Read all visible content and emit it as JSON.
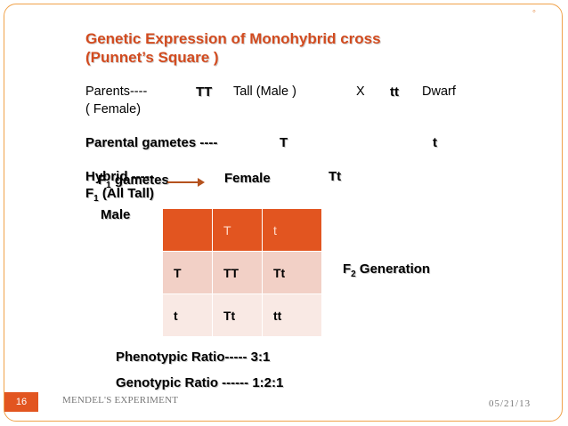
{
  "title": {
    "line1": "Genetic  Expression  of  Monohybrid  cross",
    "line2": "(Punnet’s Square )"
  },
  "parents": {
    "label": "Parents----",
    "male_genotype": "TT",
    "male_desc": "Tall  (Male  )",
    "cross_symbol": "X",
    "female_genotype": "tt",
    "female_desc": "Dwarf",
    "female_note": "( Female)"
  },
  "parental_gametes": {
    "label": "Parental gametes  ----",
    "gamete1": "T",
    "gamete2": "t"
  },
  "hybrid": {
    "overlap_text": "Hybrid -----",
    "f1_prefix": "F",
    "f1_sub": "1",
    "f1_suffix": " (All Tall)",
    "f1_gametes_prefix": "F",
    "f1_gametes_sub": "1",
    "f1_gametes_suffix": " gametes",
    "female_label": "Female",
    "hybrid_genotype": "Tt",
    "male_label": "Male"
  },
  "punnet": {
    "rows": [
      [
        "",
        "T",
        "t"
      ],
      [
        "T",
        "TT",
        "Tt"
      ],
      [
        "t",
        "Tt",
        "tt"
      ]
    ]
  },
  "f2": {
    "prefix": "F",
    "sub": "2",
    "suffix": " Generation"
  },
  "ratios": {
    "phenotypic": "Phenotypic Ratio-----  3:1",
    "genotypic": "Genotypic    Ratio ------  1:2:1"
  },
  "footer": {
    "page_number": "16",
    "left_text": "MENDEL'S EXPERIMENT",
    "date": "05/21/13"
  },
  "colors": {
    "accent": "#e25520",
    "title": "#d24b1f",
    "table_row1": "#f2d0c6",
    "table_row2": "#f9e9e4"
  }
}
